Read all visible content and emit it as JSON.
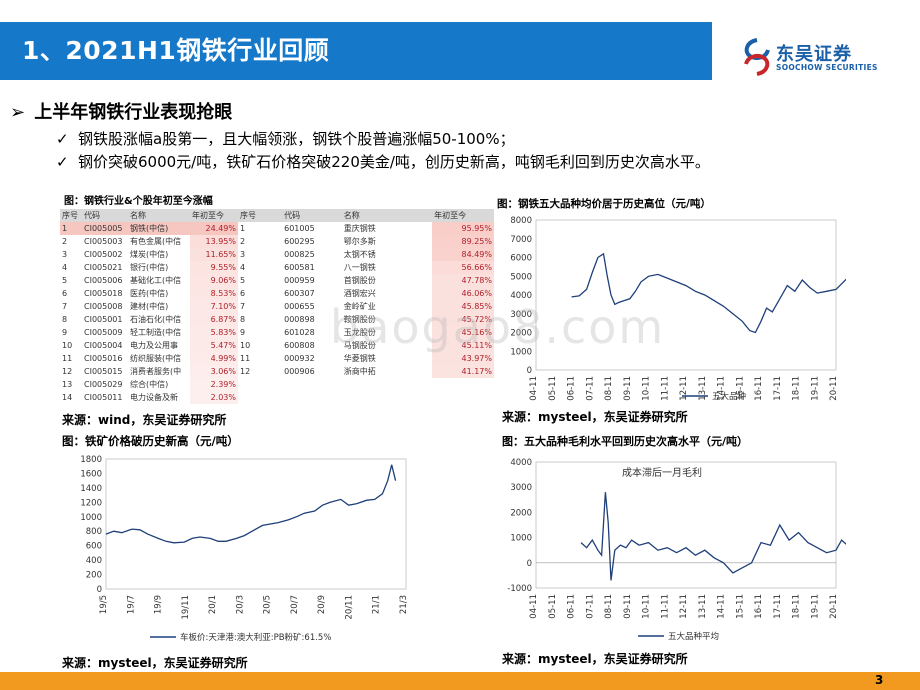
{
  "header": {
    "title": "1、2021H1钢铁行业回顾",
    "logo_text": "东吴证券",
    "logo_sub": "SOOCHOW SECURITIES",
    "logo_mark": "SCS"
  },
  "heading": "上半年钢铁行业表现抢眼",
  "points": [
    "钢铁股涨幅a股第一，且大幅领涨，钢铁个股普遍涨幅50-100%；",
    "钢价突破6000元/吨，铁矿石价格突破220美金/吨，创历史新高，吨钢毛利回到历史次高水平。"
  ],
  "table_caption": "图：钢铁行业&个股年初至今涨幅",
  "table": {
    "left_headers": [
      "序号",
      "代码",
      "名称",
      "年初至今"
    ],
    "left_rows": [
      [
        "1",
        "CI005005",
        "钢铁(中信)",
        "24.49%"
      ],
      [
        "2",
        "CI005003",
        "有色金属(中信",
        "13.95%"
      ],
      [
        "3",
        "CI005002",
        "煤炭(中信)",
        "11.65%"
      ],
      [
        "4",
        "CI005021",
        "银行(中信)",
        "9.55%"
      ],
      [
        "5",
        "CI005006",
        "基础化工(中信",
        "9.06%"
      ],
      [
        "6",
        "CI005018",
        "医药(中信)",
        "8.53%"
      ],
      [
        "7",
        "CI005008",
        "建材(中信)",
        "7.10%"
      ],
      [
        "8",
        "CI005001",
        "石油石化(中信",
        "6.87%"
      ],
      [
        "9",
        "CI005009",
        "轻工制造(中信",
        "5.83%"
      ],
      [
        "10",
        "CI005004",
        "电力及公用事",
        "5.47%"
      ],
      [
        "11",
        "CI005016",
        "纺织服装(中信",
        "4.99%"
      ],
      [
        "12",
        "CI005015",
        "消费者服务(中",
        "3.06%"
      ],
      [
        "13",
        "CI005029",
        "综合(中信)",
        "2.39%"
      ],
      [
        "14",
        "CI005011",
        "电力设备及新",
        "2.03%"
      ]
    ],
    "right_headers": [
      "序号",
      "代码",
      "名称",
      "年初至今"
    ],
    "right_rows": [
      [
        "1",
        "601005",
        "重庆钢铁",
        "95.95%"
      ],
      [
        "2",
        "600295",
        "鄂尔多斯",
        "89.25%"
      ],
      [
        "3",
        "000825",
        "太钢不锈",
        "84.49%"
      ],
      [
        "4",
        "600581",
        "八一钢铁",
        "56.66%"
      ],
      [
        "5",
        "000959",
        "首钢股份",
        "47.78%"
      ],
      [
        "6",
        "600307",
        "酒钢宏兴",
        "46.06%"
      ],
      [
        "7",
        "000655",
        "金岭矿业",
        "45.85%"
      ],
      [
        "8",
        "000898",
        "鞍钢股份",
        "45.72%"
      ],
      [
        "9",
        "601028",
        "玉龙股份",
        "45.16%"
      ],
      [
        "10",
        "600808",
        "马钢股份",
        "45.11%"
      ],
      [
        "11",
        "000932",
        "华菱钢铁",
        "43.97%"
      ],
      [
        "12",
        "000906",
        "浙商中拓",
        "41.17%"
      ]
    ],
    "source": "来源：wind，东吴证券研究所"
  },
  "charts": {
    "steel": {
      "caption": "图：钢铁五大品种均价居于历史高位（元/吨）",
      "source": "来源：mysteel，东吴证券研究所"
    },
    "ore": {
      "caption": "图：铁矿价格破历史新高（元/吨）",
      "source": "来源：mysteel，东吴证券研究所"
    },
    "margin": {
      "caption": "图：五大品种毛利水平回到历史次高水平（元/吨）",
      "source": ""
    }
  },
  "chart_data": [
    {
      "type": "line",
      "title": "",
      "x": [
        "04-11",
        "05-11",
        "06-11",
        "07-11",
        "08-11",
        "09-11",
        "10-11",
        "11-11",
        "12-11",
        "13-11",
        "14-11",
        "15-11",
        "16-11",
        "17-11",
        "18-11",
        "19-11",
        "20-11"
      ],
      "ylim": [
        0,
        8000
      ],
      "yticks": [
        0,
        1000,
        2000,
        3000,
        4000,
        5000,
        6000,
        7000,
        8000
      ],
      "series": [
        {
          "name": "五大品种",
          "color": "#1f3f7a",
          "points": [
            [
              1.9,
              3900
            ],
            [
              2.3,
              3950
            ],
            [
              2.7,
              4300
            ],
            [
              3.0,
              5200
            ],
            [
              3.3,
              6000
            ],
            [
              3.6,
              6200
            ],
            [
              3.8,
              5000
            ],
            [
              4.0,
              4000
            ],
            [
              4.2,
              3500
            ],
            [
              4.4,
              3600
            ],
            [
              4.7,
              3700
            ],
            [
              5.0,
              3800
            ],
            [
              5.3,
              4200
            ],
            [
              5.6,
              4700
            ],
            [
              6.0,
              5000
            ],
            [
              6.5,
              5100
            ],
            [
              7.0,
              4900
            ],
            [
              7.5,
              4700
            ],
            [
              8.0,
              4500
            ],
            [
              8.5,
              4200
            ],
            [
              9.0,
              4000
            ],
            [
              9.5,
              3700
            ],
            [
              10.0,
              3400
            ],
            [
              10.5,
              3000
            ],
            [
              11.0,
              2600
            ],
            [
              11.4,
              2100
            ],
            [
              11.7,
              2000
            ],
            [
              12.0,
              2600
            ],
            [
              12.3,
              3300
            ],
            [
              12.6,
              3100
            ],
            [
              13.0,
              3800
            ],
            [
              13.4,
              4500
            ],
            [
              13.8,
              4200
            ],
            [
              14.2,
              4800
            ],
            [
              14.6,
              4400
            ],
            [
              15.0,
              4100
            ],
            [
              15.5,
              4200
            ],
            [
              16.0,
              4300
            ],
            [
              16.4,
              4700
            ],
            [
              16.7,
              5000
            ],
            [
              16.9,
              6200
            ],
            [
              17.0,
              6700
            ]
          ]
        }
      ]
    },
    {
      "type": "line",
      "title": "",
      "x": [
        "19/5",
        "19/7",
        "19/9",
        "19/11",
        "20/1",
        "20/3",
        "20/5",
        "20/7",
        "20/9",
        "20/11",
        "21/1",
        "21/3"
      ],
      "ylim": [
        0,
        1800
      ],
      "yticks": [
        0,
        200,
        400,
        600,
        800,
        1000,
        1200,
        1400,
        1600,
        1800
      ],
      "series": [
        {
          "name": "车板价:天津港:澳大利亚:PB粉矿:61.5%",
          "color": "#1f3f7a",
          "points": [
            [
              0.0,
              760
            ],
            [
              0.3,
              800
            ],
            [
              0.6,
              780
            ],
            [
              1.0,
              830
            ],
            [
              1.3,
              820
            ],
            [
              1.6,
              760
            ],
            [
              2.0,
              700
            ],
            [
              2.3,
              660
            ],
            [
              2.6,
              640
            ],
            [
              3.0,
              650
            ],
            [
              3.3,
              700
            ],
            [
              3.6,
              720
            ],
            [
              4.0,
              700
            ],
            [
              4.3,
              660
            ],
            [
              4.6,
              660
            ],
            [
              5.0,
              700
            ],
            [
              5.3,
              740
            ],
            [
              5.6,
              800
            ],
            [
              6.0,
              880
            ],
            [
              6.3,
              900
            ],
            [
              6.6,
              920
            ],
            [
              7.0,
              960
            ],
            [
              7.3,
              1000
            ],
            [
              7.6,
              1050
            ],
            [
              8.0,
              1080
            ],
            [
              8.3,
              1160
            ],
            [
              8.6,
              1200
            ],
            [
              9.0,
              1240
            ],
            [
              9.3,
              1160
            ],
            [
              9.6,
              1180
            ],
            [
              10.0,
              1230
            ],
            [
              10.3,
              1240
            ],
            [
              10.6,
              1320
            ],
            [
              10.8,
              1500
            ],
            [
              10.95,
              1720
            ],
            [
              11.1,
              1500
            ]
          ]
        }
      ]
    },
    {
      "type": "line",
      "title": "成本滞后一月毛利",
      "x": [
        "04-11",
        "05-11",
        "06-11",
        "07-11",
        "08-11",
        "09-11",
        "10-11",
        "11-11",
        "12-11",
        "13-11",
        "14-11",
        "15-11",
        "16-11",
        "17-11",
        "18-11",
        "19-11",
        "20-11"
      ],
      "ylim": [
        -1000,
        4000
      ],
      "yticks": [
        -1000,
        0,
        1000,
        2000,
        3000,
        4000
      ],
      "series": [
        {
          "name": "五大品种平均",
          "color": "#1f3f7a",
          "points": [
            [
              2.4,
              800
            ],
            [
              2.7,
              600
            ],
            [
              3.0,
              900
            ],
            [
              3.3,
              500
            ],
            [
              3.5,
              300
            ],
            [
              3.7,
              2800
            ],
            [
              3.85,
              1600
            ],
            [
              4.0,
              -700
            ],
            [
              4.2,
              500
            ],
            [
              4.5,
              700
            ],
            [
              4.8,
              600
            ],
            [
              5.1,
              900
            ],
            [
              5.5,
              700
            ],
            [
              6.0,
              800
            ],
            [
              6.5,
              500
            ],
            [
              7.0,
              600
            ],
            [
              7.5,
              400
            ],
            [
              8.0,
              600
            ],
            [
              8.5,
              300
            ],
            [
              9.0,
              500
            ],
            [
              9.5,
              200
            ],
            [
              10.0,
              0
            ],
            [
              10.5,
              -400
            ],
            [
              11.0,
              -200
            ],
            [
              11.5,
              0
            ],
            [
              12.0,
              800
            ],
            [
              12.5,
              700
            ],
            [
              13.0,
              1500
            ],
            [
              13.5,
              900
            ],
            [
              14.0,
              1200
            ],
            [
              14.5,
              800
            ],
            [
              15.0,
              600
            ],
            [
              15.5,
              400
            ],
            [
              16.0,
              500
            ],
            [
              16.3,
              900
            ],
            [
              16.6,
              700
            ],
            [
              16.8,
              1400
            ],
            [
              16.9,
              2400
            ],
            [
              17.0,
              800
            ]
          ]
        }
      ]
    }
  ],
  "watermark": "baogao8.com",
  "page_number": "3"
}
